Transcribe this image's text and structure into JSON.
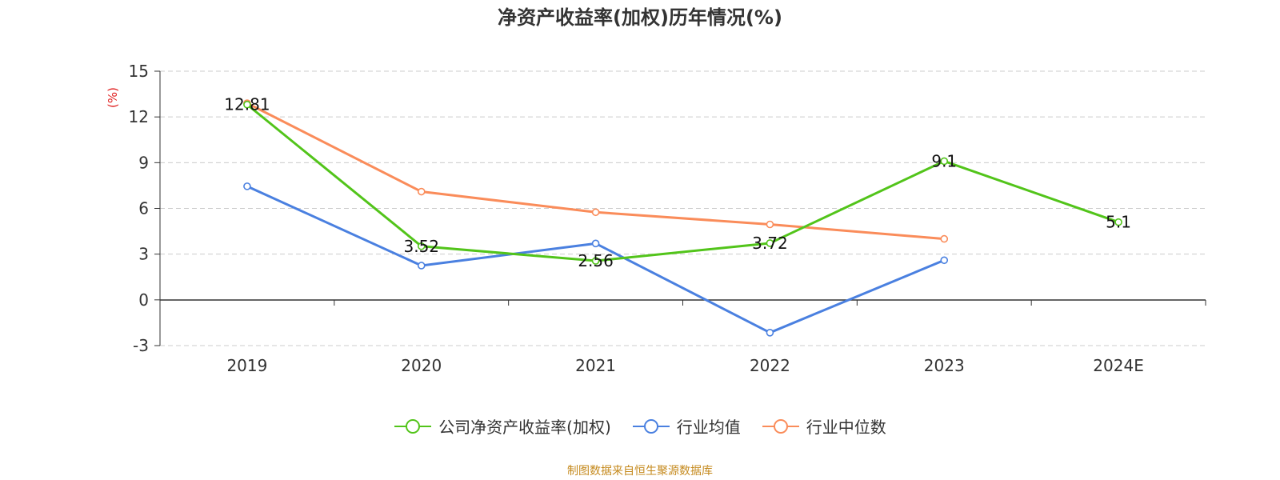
{
  "chart_data": {
    "type": "line",
    "title": "净资产收益率(加权)历年情况(%)",
    "ylabel": "(%)",
    "xlabel": "",
    "categories": [
      "2019",
      "2020",
      "2021",
      "2022",
      "2023",
      "2024E"
    ],
    "ylim": [
      -3,
      15
    ],
    "yticks": [
      15,
      12,
      9,
      6,
      3,
      0,
      -3
    ],
    "grid": true,
    "legend_position": "bottom",
    "series": [
      {
        "name": "公司净资产收益率(加权)",
        "color": "#52c41a",
        "values": [
          12.81,
          3.52,
          2.56,
          3.72,
          9.1,
          5.1
        ],
        "labels": [
          "12.81",
          "3.52",
          "2.56",
          "3.72",
          "9.1",
          "5.1"
        ]
      },
      {
        "name": "行业均值",
        "color": "#4a80e0",
        "values": [
          7.45,
          2.25,
          3.7,
          -2.15,
          2.6,
          null
        ]
      },
      {
        "name": "行业中位数",
        "color": "#fa8c5a",
        "values": [
          12.9,
          7.1,
          5.75,
          4.95,
          4.0,
          null
        ]
      }
    ]
  },
  "footer": {
    "source": "制图数据来自恒生聚源数据库"
  }
}
